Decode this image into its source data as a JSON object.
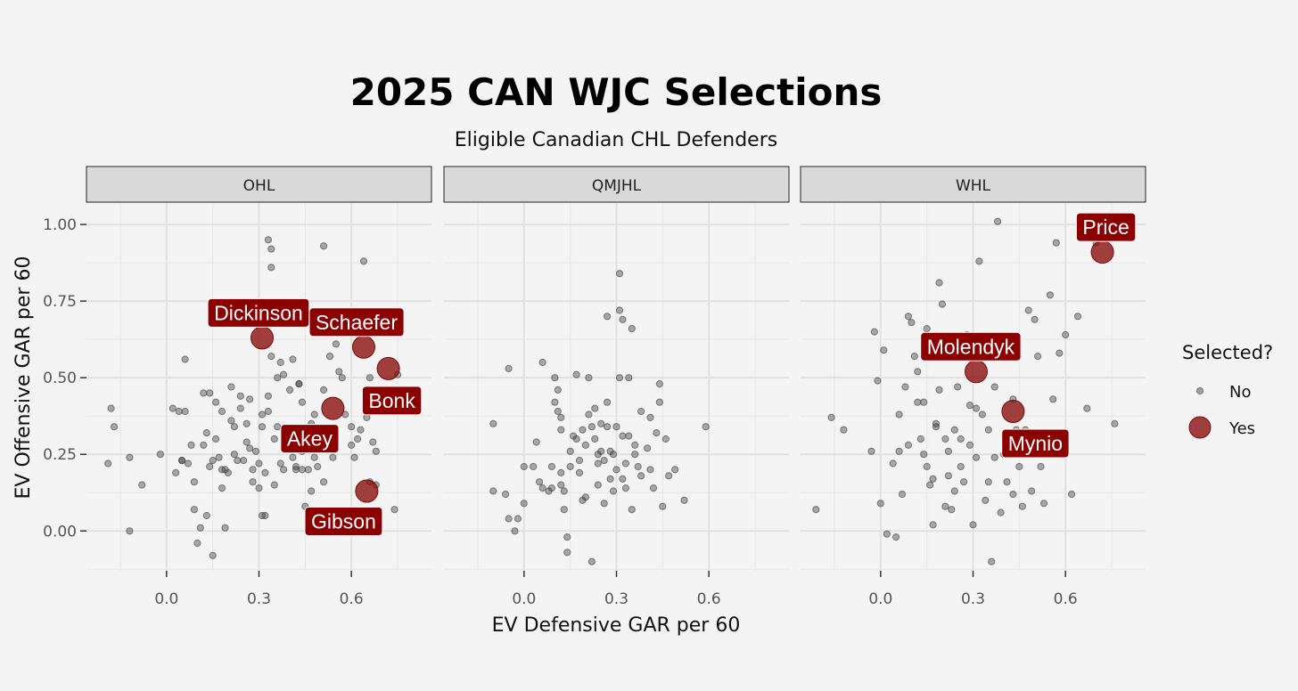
{
  "colors": {
    "background": "#f4f4f4",
    "strip_fill": "#d9d9d9",
    "grid": "#e6e6e6",
    "point_no": "#3a3a3a",
    "point_yes": "#8b1010",
    "label_fill": "#8b0000",
    "label_text": "#ffffff"
  },
  "chart_data": {
    "type": "scatter",
    "title": "2025 CAN WJC Selections",
    "subtitle": "Eligible Canadian CHL Defenders",
    "xlabel": "EV Defensive GAR per 60",
    "ylabel": "EV Offensive GAR per 60",
    "xlim": [
      -0.26,
      0.86
    ],
    "ylim": [
      -0.13,
      1.07
    ],
    "x_ticks": [
      0.0,
      0.3,
      0.6
    ],
    "x_tick_labels": [
      "0.0",
      "0.3",
      "0.6"
    ],
    "y_ticks": [
      0.0,
      0.25,
      0.5,
      0.75,
      1.0
    ],
    "y_tick_labels": [
      "0.00",
      "0.25",
      "0.50",
      "0.75",
      "1.00"
    ],
    "legend": {
      "title": "Selected?",
      "position": "right",
      "entries": [
        {
          "label": "No",
          "marker": "small-grey-point"
        },
        {
          "label": "Yes",
          "marker": "large-red-point"
        }
      ]
    },
    "panels": [
      {
        "name": "OHL",
        "not_selected": [
          [
            -0.19,
            0.22
          ],
          [
            -0.18,
            0.4
          ],
          [
            -0.17,
            0.34
          ],
          [
            -0.12,
            0.24
          ],
          [
            -0.12,
            0.0
          ],
          [
            -0.08,
            0.15
          ],
          [
            -0.02,
            0.25
          ],
          [
            0.02,
            0.4
          ],
          [
            0.03,
            0.19
          ],
          [
            0.04,
            0.39
          ],
          [
            0.05,
            0.23
          ],
          [
            0.05,
            0.23
          ],
          [
            0.06,
            0.39
          ],
          [
            0.06,
            0.56
          ],
          [
            0.07,
            0.22
          ],
          [
            0.08,
            0.28
          ],
          [
            0.09,
            0.16
          ],
          [
            0.09,
            0.07
          ],
          [
            0.1,
            -0.04
          ],
          [
            0.11,
            0.01
          ],
          [
            0.12,
            0.45
          ],
          [
            0.13,
            0.32
          ],
          [
            0.13,
            0.05
          ],
          [
            0.14,
            0.21
          ],
          [
            0.15,
            0.23
          ],
          [
            0.15,
            -0.08
          ],
          [
            0.16,
            0.42
          ],
          [
            0.16,
            0.3
          ],
          [
            0.17,
            0.24
          ],
          [
            0.18,
            0.14
          ],
          [
            0.18,
            0.2
          ],
          [
            0.19,
            0.01
          ],
          [
            0.19,
            0.2
          ],
          [
            0.2,
            0.19
          ],
          [
            0.21,
            0.36
          ],
          [
            0.22,
            0.25
          ],
          [
            0.23,
            0.23
          ],
          [
            0.24,
            0.4
          ],
          [
            0.24,
            0.44
          ],
          [
            0.25,
            0.23
          ],
          [
            0.26,
            0.29
          ],
          [
            0.27,
            0.43
          ],
          [
            0.28,
            0.2
          ],
          [
            0.28,
            0.16
          ],
          [
            0.29,
            0.26
          ],
          [
            0.3,
            0.22
          ],
          [
            0.3,
            0.14
          ],
          [
            0.31,
            0.38
          ],
          [
            0.31,
            0.05
          ],
          [
            0.32,
            0.19
          ],
          [
            0.32,
            0.05
          ],
          [
            0.33,
            0.44
          ],
          [
            0.33,
            0.95
          ],
          [
            0.34,
            0.92
          ],
          [
            0.34,
            0.86
          ],
          [
            0.34,
            0.57
          ],
          [
            0.35,
            0.3
          ],
          [
            0.35,
            0.15
          ],
          [
            0.36,
            0.5
          ],
          [
            0.37,
            0.55
          ],
          [
            0.37,
            0.22
          ],
          [
            0.38,
            0.2
          ],
          [
            0.38,
            0.51
          ],
          [
            0.4,
            0.29
          ],
          [
            0.41,
            0.56
          ],
          [
            0.41,
            0.24
          ],
          [
            0.42,
            0.21
          ],
          [
            0.42,
            0.2
          ],
          [
            0.43,
            0.48
          ],
          [
            0.43,
            0.48
          ],
          [
            0.44,
            0.2
          ],
          [
            0.44,
            0.26
          ],
          [
            0.45,
            0.08
          ],
          [
            0.46,
            0.2
          ],
          [
            0.47,
            0.3
          ],
          [
            0.47,
            0.13
          ],
          [
            0.47,
            0.35
          ],
          [
            0.48,
            0.38
          ],
          [
            0.48,
            0.24
          ],
          [
            0.49,
            0.21
          ],
          [
            0.51,
            0.46
          ],
          [
            0.51,
            0.93
          ],
          [
            0.51,
            0.16
          ],
          [
            0.52,
            0.3
          ],
          [
            0.53,
            0.57
          ],
          [
            0.54,
            0.24
          ],
          [
            0.55,
            0.61
          ],
          [
            0.56,
            0.52
          ],
          [
            0.57,
            0.5
          ],
          [
            0.58,
            0.38
          ],
          [
            0.6,
            0.28
          ],
          [
            0.6,
            0.34
          ],
          [
            0.61,
            0.24
          ],
          [
            0.62,
            0.3
          ],
          [
            0.63,
            0.33
          ],
          [
            0.64,
            0.88
          ],
          [
            0.65,
            0.37
          ],
          [
            0.66,
            0.16
          ],
          [
            0.66,
            0.5
          ],
          [
            0.67,
            0.29
          ],
          [
            0.68,
            0.26
          ],
          [
            0.68,
            0.15
          ],
          [
            0.74,
            0.07
          ],
          [
            0.75,
            0.51
          ],
          [
            0.31,
            0.34
          ],
          [
            0.22,
            0.34
          ],
          [
            0.18,
            0.39
          ],
          [
            0.12,
            0.28
          ],
          [
            0.26,
            0.35
          ],
          [
            0.36,
            0.34
          ],
          [
            0.4,
            0.46
          ],
          [
            0.27,
            0.27
          ],
          [
            0.14,
            0.45
          ],
          [
            0.21,
            0.47
          ],
          [
            0.33,
            0.39
          ],
          [
            0.44,
            0.42
          ]
        ],
        "selected": [
          {
            "name": "Dickinson",
            "x": 0.31,
            "y": 0.63
          },
          {
            "name": "Schaefer",
            "x": 0.64,
            "y": 0.6
          },
          {
            "name": "Bonk",
            "x": 0.72,
            "y": 0.53
          },
          {
            "name": "Akey",
            "x": 0.54,
            "y": 0.4
          },
          {
            "name": "Gibson",
            "x": 0.65,
            "y": 0.13
          }
        ]
      },
      {
        "name": "QMJHL",
        "not_selected": [
          [
            -0.1,
            0.13
          ],
          [
            -0.1,
            0.35
          ],
          [
            -0.06,
            0.12
          ],
          [
            -0.05,
            0.04
          ],
          [
            -0.05,
            0.53
          ],
          [
            -0.03,
            0.0
          ],
          [
            -0.02,
            0.04
          ],
          [
            0.0,
            0.09
          ],
          [
            0.0,
            0.21
          ],
          [
            0.03,
            0.21
          ],
          [
            0.04,
            0.29
          ],
          [
            0.05,
            0.16
          ],
          [
            0.06,
            0.14
          ],
          [
            0.06,
            0.55
          ],
          [
            0.08,
            0.13
          ],
          [
            0.09,
            0.14
          ],
          [
            0.09,
            0.21
          ],
          [
            0.1,
            0.42
          ],
          [
            0.1,
            0.5
          ],
          [
            0.11,
            0.46
          ],
          [
            0.11,
            0.39
          ],
          [
            0.12,
            0.37
          ],
          [
            0.12,
            0.33
          ],
          [
            0.12,
            0.15
          ],
          [
            0.13,
            0.13
          ],
          [
            0.13,
            0.07
          ],
          [
            0.14,
            -0.02
          ],
          [
            0.14,
            -0.07
          ],
          [
            0.15,
            0.21
          ],
          [
            0.15,
            0.26
          ],
          [
            0.16,
            0.31
          ],
          [
            0.17,
            0.3
          ],
          [
            0.17,
            0.51
          ],
          [
            0.18,
            0.19
          ],
          [
            0.18,
            0.23
          ],
          [
            0.19,
            0.33
          ],
          [
            0.2,
            0.28
          ],
          [
            0.2,
            0.11
          ],
          [
            0.21,
            0.5
          ],
          [
            0.21,
            0.38
          ],
          [
            0.22,
            0.34
          ],
          [
            0.22,
            -0.1
          ],
          [
            0.23,
            0.4
          ],
          [
            0.23,
            0.3
          ],
          [
            0.24,
            0.22
          ],
          [
            0.24,
            0.15
          ],
          [
            0.25,
            0.35
          ],
          [
            0.25,
            0.26
          ],
          [
            0.26,
            0.23
          ],
          [
            0.26,
            0.09
          ],
          [
            0.27,
            0.7
          ],
          [
            0.27,
            0.42
          ],
          [
            0.28,
            0.26
          ],
          [
            0.28,
            0.17
          ],
          [
            0.29,
            0.13
          ],
          [
            0.29,
            0.25
          ],
          [
            0.3,
            0.2
          ],
          [
            0.3,
            0.34
          ],
          [
            0.31,
            0.84
          ],
          [
            0.31,
            0.5
          ],
          [
            0.31,
            0.72
          ],
          [
            0.32,
            0.17
          ],
          [
            0.32,
            0.31
          ],
          [
            0.32,
            0.69
          ],
          [
            0.33,
            0.22
          ],
          [
            0.33,
            0.14
          ],
          [
            0.34,
            0.5
          ],
          [
            0.34,
            0.31
          ],
          [
            0.35,
            0.66
          ],
          [
            0.35,
            0.07
          ],
          [
            0.36,
            0.28
          ],
          [
            0.37,
            0.21
          ],
          [
            0.38,
            0.18
          ],
          [
            0.38,
            0.39
          ],
          [
            0.4,
            0.27
          ],
          [
            0.41,
            0.2
          ],
          [
            0.41,
            0.37
          ],
          [
            0.42,
            0.14
          ],
          [
            0.43,
            0.32
          ],
          [
            0.44,
            0.48
          ],
          [
            0.44,
            0.42
          ],
          [
            0.45,
            0.08
          ],
          [
            0.46,
            0.3
          ],
          [
            0.47,
            0.18
          ],
          [
            0.49,
            0.2
          ],
          [
            0.52,
            0.1
          ],
          [
            0.59,
            0.34
          ],
          [
            0.24,
            0.25
          ],
          [
            0.12,
            0.19
          ],
          [
            0.19,
            0.1
          ],
          [
            0.27,
            0.34
          ],
          [
            0.36,
            0.25
          ]
        ],
        "selected": []
      },
      {
        "name": "WHL",
        "not_selected": [
          [
            -0.21,
            0.07
          ],
          [
            -0.16,
            0.37
          ],
          [
            -0.12,
            0.33
          ],
          [
            -0.03,
            0.26
          ],
          [
            -0.02,
            0.65
          ],
          [
            -0.01,
            0.49
          ],
          [
            0.0,
            0.09
          ],
          [
            0.01,
            0.59
          ],
          [
            0.02,
            -0.01
          ],
          [
            0.04,
            0.22
          ],
          [
            0.05,
            -0.02
          ],
          [
            0.06,
            0.38
          ],
          [
            0.06,
            0.26
          ],
          [
            0.07,
            0.12
          ],
          [
            0.08,
            0.47
          ],
          [
            0.09,
            0.7
          ],
          [
            0.1,
            0.68
          ],
          [
            0.11,
            0.57
          ],
          [
            0.12,
            0.52
          ],
          [
            0.12,
            0.42
          ],
          [
            0.13,
            0.3
          ],
          [
            0.14,
            0.25
          ],
          [
            0.15,
            0.66
          ],
          [
            0.15,
            0.21
          ],
          [
            0.16,
            0.15
          ],
          [
            0.17,
            0.02
          ],
          [
            0.17,
            0.17
          ],
          [
            0.18,
            0.35
          ],
          [
            0.19,
            0.46
          ],
          [
            0.19,
            0.81
          ],
          [
            0.2,
            0.74
          ],
          [
            0.21,
            0.3
          ],
          [
            0.21,
            0.08
          ],
          [
            0.22,
            0.26
          ],
          [
            0.23,
            0.07
          ],
          [
            0.24,
            0.33
          ],
          [
            0.24,
            0.13
          ],
          [
            0.25,
            0.47
          ],
          [
            0.26,
            0.3
          ],
          [
            0.27,
            0.16
          ],
          [
            0.28,
            0.64
          ],
          [
            0.29,
            0.41
          ],
          [
            0.3,
            0.02
          ],
          [
            0.31,
            0.24
          ],
          [
            0.31,
            0.4
          ],
          [
            0.32,
            0.88
          ],
          [
            0.33,
            0.38
          ],
          [
            0.34,
            0.1
          ],
          [
            0.35,
            0.33
          ],
          [
            0.36,
            -0.1
          ],
          [
            0.37,
            0.24
          ],
          [
            0.37,
            0.47
          ],
          [
            0.38,
            1.01
          ],
          [
            0.39,
            0.06
          ],
          [
            0.4,
            0.25
          ],
          [
            0.41,
            0.16
          ],
          [
            0.42,
            0.28
          ],
          [
            0.43,
            0.43
          ],
          [
            0.44,
            0.33
          ],
          [
            0.45,
            0.21
          ],
          [
            0.46,
            0.08
          ],
          [
            0.47,
            0.33
          ],
          [
            0.48,
            0.72
          ],
          [
            0.49,
            0.13
          ],
          [
            0.5,
            0.69
          ],
          [
            0.51,
            0.57
          ],
          [
            0.52,
            0.21
          ],
          [
            0.53,
            0.09
          ],
          [
            0.55,
            0.77
          ],
          [
            0.56,
            0.43
          ],
          [
            0.57,
            0.94
          ],
          [
            0.58,
            0.58
          ],
          [
            0.6,
            0.64
          ],
          [
            0.62,
            0.12
          ],
          [
            0.64,
            0.7
          ],
          [
            0.67,
            0.4
          ],
          [
            0.7,
            0.94
          ],
          [
            0.76,
            0.35
          ],
          [
            0.26,
            0.21
          ],
          [
            0.18,
            0.34
          ],
          [
            0.29,
            0.28
          ],
          [
            0.35,
            0.16
          ],
          [
            0.14,
            0.42
          ],
          [
            0.22,
            0.18
          ],
          [
            0.43,
            0.12
          ],
          [
            0.09,
            0.28
          ]
        ],
        "selected": [
          {
            "name": "Price",
            "x": 0.72,
            "y": 0.91
          },
          {
            "name": "Molendyk",
            "x": 0.31,
            "y": 0.52
          },
          {
            "name": "Mynio",
            "x": 0.43,
            "y": 0.39
          }
        ]
      }
    ]
  }
}
